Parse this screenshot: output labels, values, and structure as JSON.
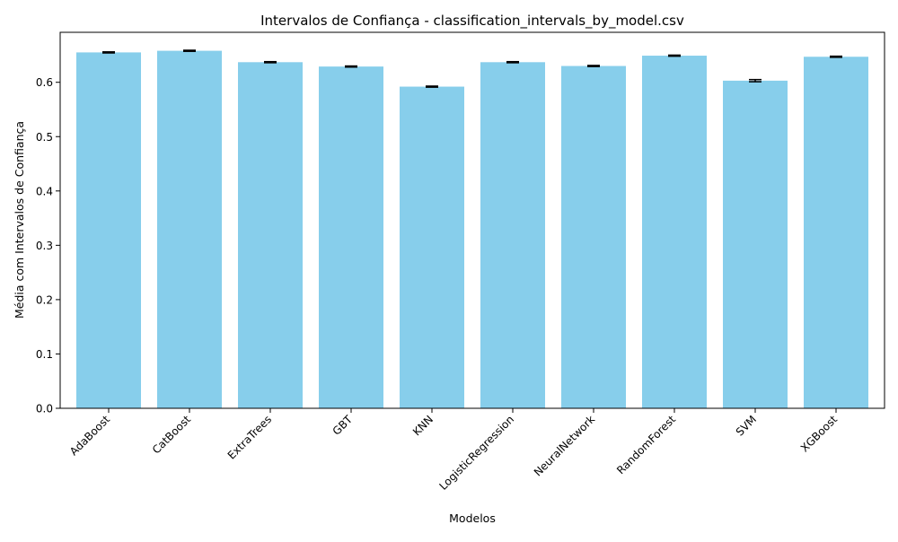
{
  "chart_data": {
    "type": "bar",
    "title": "Intervalos de Confiança - classification_intervals_by_model.csv",
    "xlabel": "Modelos",
    "ylabel": "Média com Intervalos de Confiança",
    "categories": [
      "AdaBoost",
      "CatBoost",
      "ExtraTrees",
      "GBT",
      "KNN",
      "LogisticRegression",
      "NeuralNetwork",
      "RandomForest",
      "SVM",
      "XGBoost"
    ],
    "values": [
      0.655,
      0.658,
      0.637,
      0.629,
      0.592,
      0.637,
      0.63,
      0.649,
      0.603,
      0.647
    ],
    "error": [
      0.001,
      0.001,
      0.001,
      0.001,
      0.001,
      0.001,
      0.001,
      0.001,
      0.002,
      0.001
    ],
    "ylim": [
      0,
      0.692
    ],
    "yticks": [
      "0.0",
      "0.1",
      "0.2",
      "0.3",
      "0.4",
      "0.5",
      "0.6"
    ],
    "grid": false,
    "bar_color": "#87ceeb",
    "error_color": "#000000",
    "axis_color": "#000000"
  }
}
